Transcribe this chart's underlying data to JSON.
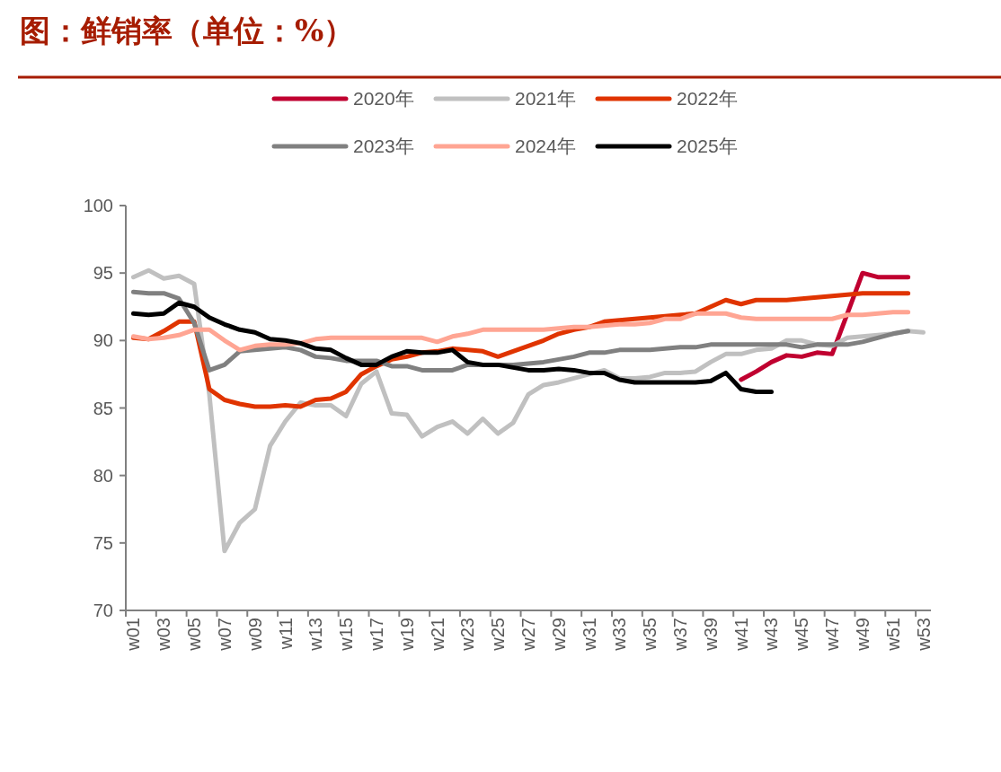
{
  "chart_data": {
    "type": "line",
    "title": "图：鲜销率（单位：%）",
    "categories": [
      "w01",
      null,
      "w03",
      null,
      "w05",
      null,
      "w07",
      null,
      "w09",
      null,
      "w11",
      null,
      "w13",
      null,
      "w15",
      null,
      "w17",
      null,
      "w19",
      null,
      "w21",
      null,
      "w23",
      null,
      "w25",
      null,
      "w27",
      null,
      "w29",
      null,
      "w31",
      null,
      "w33",
      null,
      "w35",
      null,
      "w37",
      null,
      "w39",
      null,
      "w41",
      null,
      "w43",
      null,
      "w45",
      null,
      "w47",
      null,
      "w49",
      null,
      "w51",
      null,
      "w53"
    ],
    "series": [
      {
        "name": "2020年",
        "color": "#c00030",
        "values": [
          null,
          null,
          null,
          null,
          null,
          null,
          null,
          null,
          null,
          null,
          null,
          null,
          null,
          null,
          null,
          null,
          null,
          null,
          null,
          null,
          null,
          null,
          null,
          null,
          null,
          null,
          null,
          null,
          null,
          null,
          null,
          null,
          null,
          null,
          null,
          null,
          null,
          null,
          null,
          null,
          87.1,
          87.7,
          88.4,
          88.9,
          88.8,
          89.1,
          89.0,
          92.0,
          95.0,
          94.7,
          94.7,
          94.7,
          null
        ]
      },
      {
        "name": "2021年",
        "color": "#c0c0c0",
        "values": [
          94.7,
          95.2,
          94.6,
          94.8,
          94.2,
          86.0,
          74.4,
          76.5,
          77.5,
          82.2,
          84.0,
          85.4,
          85.2,
          85.2,
          84.4,
          86.8,
          87.7,
          84.6,
          84.5,
          82.9,
          83.6,
          84.0,
          83.1,
          84.2,
          83.1,
          83.9,
          86.0,
          86.7,
          86.9,
          87.2,
          87.5,
          87.8,
          87.2,
          87.2,
          87.3,
          87.6,
          87.6,
          87.7,
          88.4,
          89.0,
          89.0,
          89.3,
          89.4,
          90.0,
          90.0,
          89.7,
          89.6,
          90.2,
          90.3,
          90.4,
          90.5,
          90.7,
          90.6
        ]
      },
      {
        "name": "2022年",
        "color": "#e03400",
        "values": [
          90.2,
          90.1,
          90.7,
          91.4,
          91.4,
          86.4,
          85.6,
          85.3,
          85.1,
          85.1,
          85.2,
          85.1,
          85.6,
          85.7,
          86.2,
          87.5,
          88.1,
          88.6,
          88.8,
          89.1,
          89.2,
          89.4,
          89.3,
          89.2,
          88.8,
          89.2,
          89.6,
          90.0,
          90.5,
          90.8,
          91.0,
          91.4,
          91.5,
          91.6,
          91.7,
          91.8,
          91.9,
          92.0,
          92.5,
          93.0,
          92.7,
          93.0,
          93.0,
          93.0,
          93.1,
          93.2,
          93.3,
          93.4,
          93.5,
          93.5,
          93.5,
          93.5,
          null
        ]
      },
      {
        "name": "2023年",
        "color": "#808080",
        "values": [
          93.6,
          93.5,
          93.5,
          93.1,
          91.3,
          87.8,
          88.2,
          89.2,
          89.3,
          89.4,
          89.5,
          89.3,
          88.8,
          88.7,
          88.5,
          88.5,
          88.5,
          88.1,
          88.1,
          87.8,
          87.8,
          87.8,
          88.2,
          88.2,
          88.2,
          88.2,
          88.3,
          88.4,
          88.6,
          88.8,
          89.1,
          89.1,
          89.3,
          89.3,
          89.3,
          89.4,
          89.5,
          89.5,
          89.7,
          89.7,
          89.7,
          89.7,
          89.7,
          89.7,
          89.5,
          89.7,
          89.7,
          89.7,
          89.9,
          90.2,
          90.5,
          90.7,
          null
        ]
      },
      {
        "name": "2024年",
        "color": "#ffa593",
        "values": [
          90.3,
          90.1,
          90.2,
          90.4,
          90.8,
          90.8,
          90.0,
          89.3,
          89.6,
          89.7,
          89.7,
          89.8,
          90.1,
          90.2,
          90.2,
          90.2,
          90.2,
          90.2,
          90.2,
          90.2,
          89.9,
          90.3,
          90.5,
          90.8,
          90.8,
          90.8,
          90.8,
          90.8,
          90.9,
          91.0,
          91.0,
          91.1,
          91.2,
          91.2,
          91.3,
          91.6,
          91.6,
          92.0,
          92.0,
          92.0,
          91.7,
          91.6,
          91.6,
          91.6,
          91.6,
          91.6,
          91.6,
          91.9,
          91.9,
          92.0,
          92.1,
          92.1,
          null
        ]
      },
      {
        "name": "2025年",
        "color": "#000000",
        "values": [
          92.0,
          91.9,
          92.0,
          92.8,
          92.5,
          91.7,
          91.2,
          90.8,
          90.6,
          90.1,
          90.0,
          89.8,
          89.4,
          89.3,
          88.7,
          88.2,
          88.2,
          88.8,
          89.2,
          89.1,
          89.1,
          89.3,
          88.4,
          88.2,
          88.2,
          88.0,
          87.8,
          87.8,
          87.9,
          87.8,
          87.6,
          87.6,
          87.1,
          86.9,
          86.9,
          86.9,
          86.9,
          86.9,
          87.0,
          87.6,
          86.4,
          86.2,
          86.2,
          null,
          null,
          null,
          null,
          null,
          null,
          null,
          null,
          null,
          null
        ]
      }
    ],
    "ylim": [
      70,
      100
    ],
    "yticks": [
      70,
      75,
      80,
      85,
      90,
      95,
      100
    ],
    "legend": "top",
    "grid": false
  }
}
